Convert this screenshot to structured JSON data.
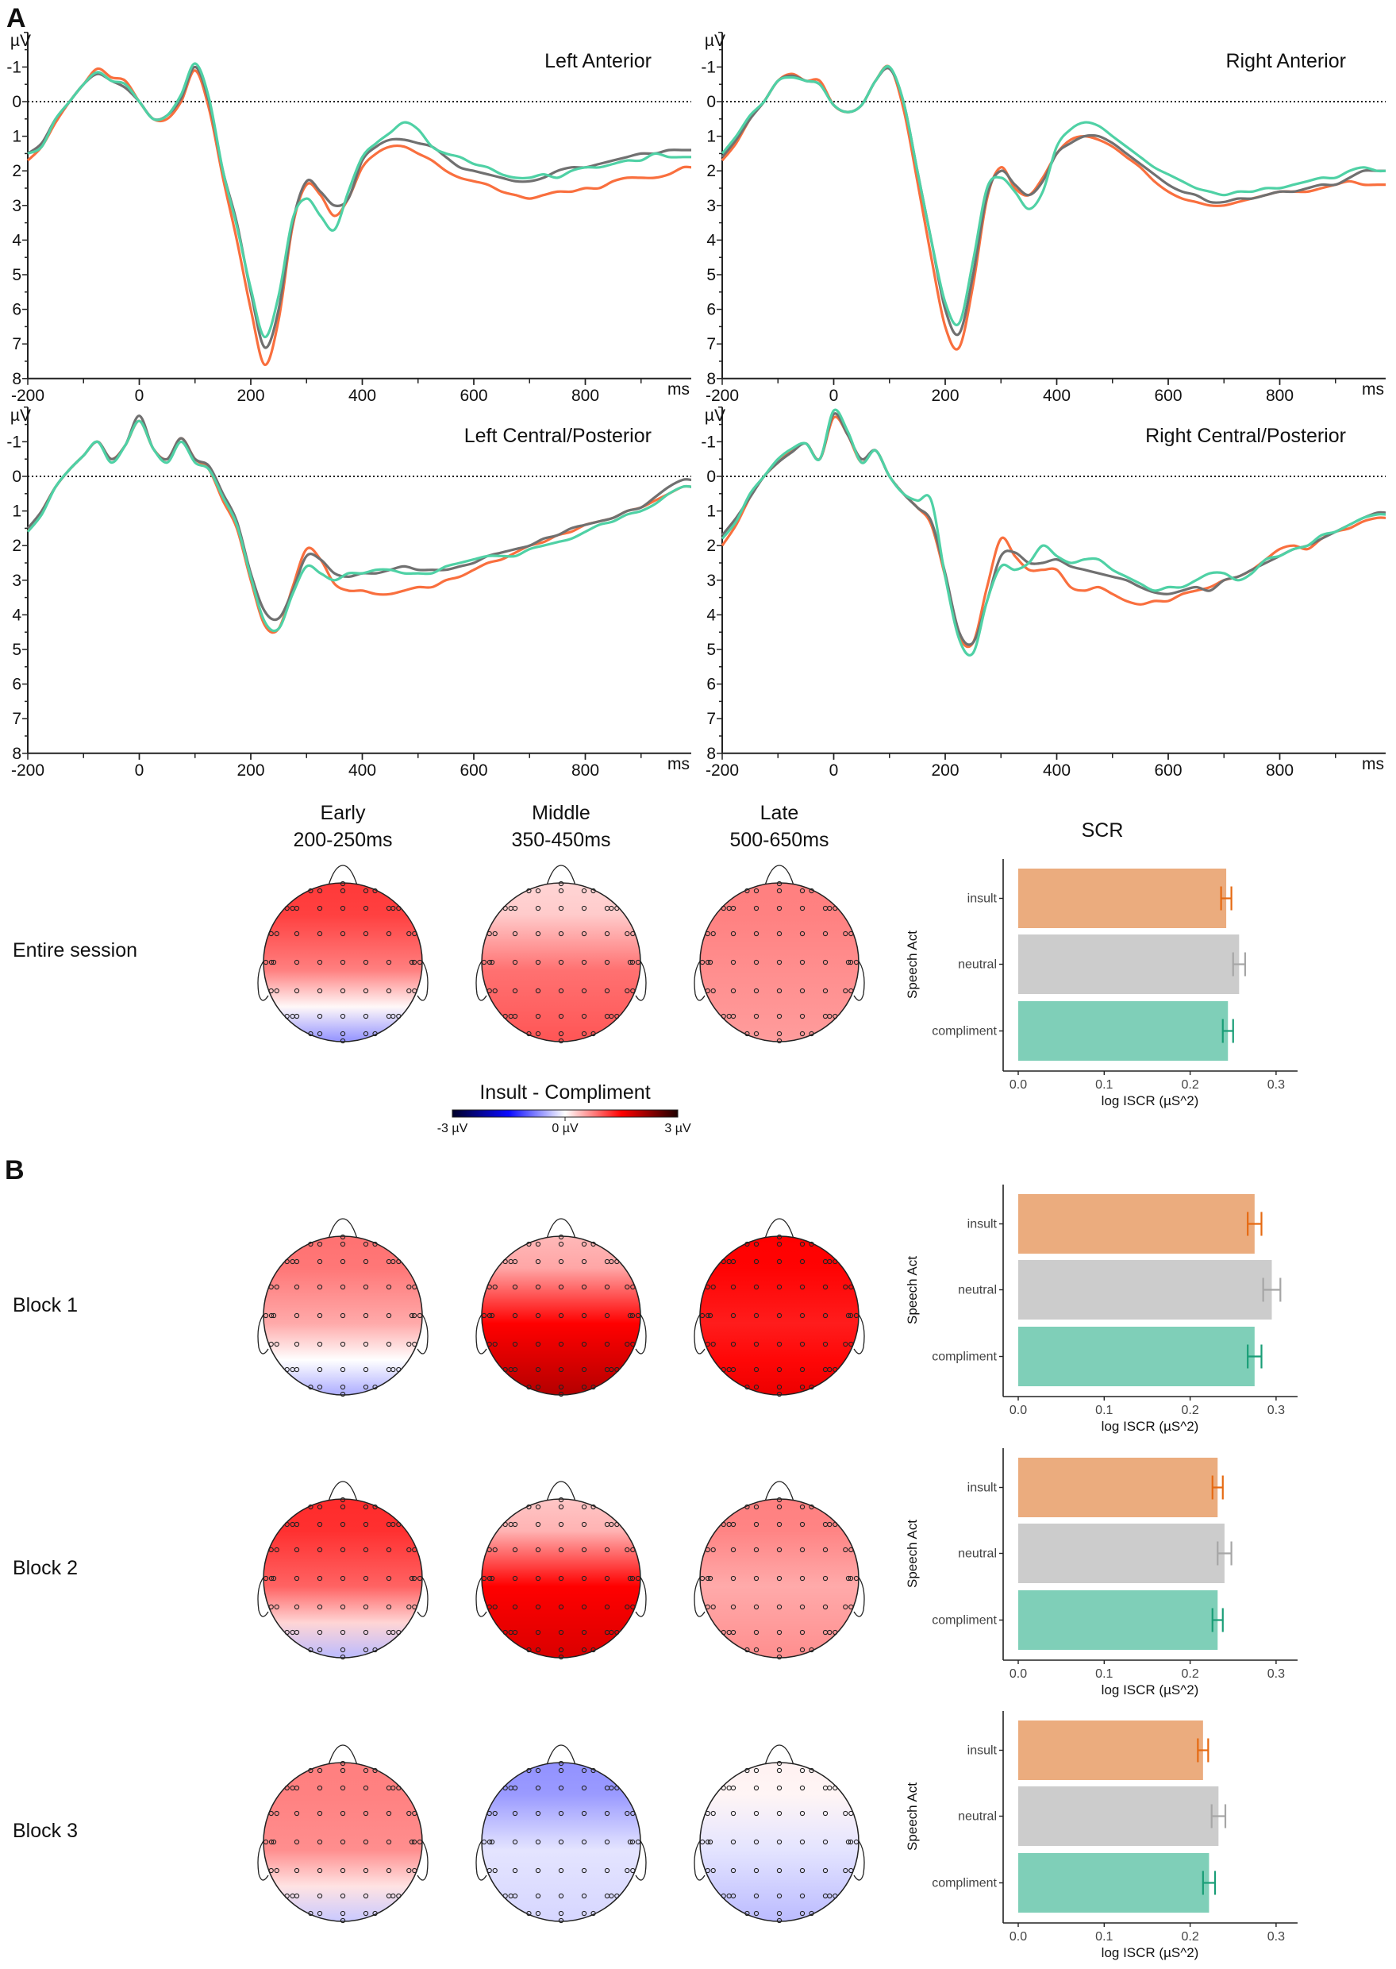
{
  "panel_labels": {
    "a": "A",
    "b": "B"
  },
  "colors": {
    "insult_line": "#f96f3e",
    "neutral_line": "#707070",
    "compliment_line": "#4fd1a5",
    "insult_bar": "#ebac7e",
    "neutral_bar": "#cccccc",
    "compliment_bar": "#7fcfb8",
    "insult_err": "#e66a12",
    "neutral_err": "#a6a6a6",
    "compliment_err": "#1a9e77"
  },
  "chart_data": [
    {
      "type": "line",
      "title": "Left Anterior",
      "xunit": "ms",
      "yunit": "µV",
      "xlim": [
        -200,
        990
      ],
      "ylim": [
        -2,
        8
      ],
      "y_inverted": true,
      "xticks": [
        -200,
        0,
        200,
        400,
        600,
        800
      ],
      "yticks": [
        -1,
        0,
        1,
        2,
        3,
        4,
        5,
        6,
        7,
        8
      ],
      "x": [
        -200,
        -175,
        -150,
        -125,
        -100,
        -75,
        -50,
        -25,
        0,
        25,
        50,
        75,
        100,
        125,
        150,
        175,
        200,
        225,
        250,
        275,
        300,
        325,
        350,
        375,
        400,
        425,
        450,
        475,
        500,
        525,
        550,
        575,
        600,
        625,
        650,
        675,
        700,
        725,
        750,
        775,
        800,
        825,
        850,
        875,
        900,
        925,
        950,
        975
      ],
      "series": [
        {
          "cond": "insult",
          "values": [
            1.7,
            1.3,
            0.6,
            0,
            -0.5,
            -0.95,
            -0.7,
            -0.6,
            0,
            0.5,
            0.5,
            0,
            -0.9,
            0.2,
            2.2,
            4,
            6,
            7.6,
            6.3,
            3.6,
            2.4,
            2.7,
            3.3,
            2.8,
            1.9,
            1.5,
            1.3,
            1.3,
            1.5,
            1.7,
            2.0,
            2.2,
            2.3,
            2.4,
            2.6,
            2.7,
            2.8,
            2.7,
            2.6,
            2.6,
            2.5,
            2.5,
            2.3,
            2.2,
            2.2,
            2.2,
            2.1,
            1.9
          ]
        },
        {
          "cond": "neutral",
          "values": [
            1.5,
            1.2,
            0.5,
            0,
            -0.5,
            -0.8,
            -0.6,
            -0.4,
            0,
            0.5,
            0.4,
            -0.1,
            -1.0,
            0,
            2,
            3.5,
            5.5,
            7.1,
            6,
            3.5,
            2.3,
            2.6,
            3.0,
            2.8,
            1.7,
            1.3,
            1.1,
            1.1,
            1.2,
            1.3,
            1.6,
            1.9,
            2.0,
            2.1,
            2.2,
            2.3,
            2.3,
            2.2,
            2.0,
            1.9,
            1.9,
            1.8,
            1.7,
            1.6,
            1.5,
            1.5,
            1.4,
            1.4
          ]
        },
        {
          "cond": "compliment",
          "values": [
            1.5,
            1.3,
            0.5,
            0,
            -0.5,
            -0.85,
            -0.6,
            -0.5,
            0,
            0.5,
            0.4,
            -0.2,
            -1.1,
            -0.1,
            2,
            3.6,
            5.4,
            6.8,
            5.6,
            3.4,
            2.8,
            3.3,
            3.7,
            2.6,
            1.6,
            1.2,
            0.9,
            0.6,
            0.8,
            1.3,
            1.5,
            1.6,
            1.8,
            1.9,
            2.1,
            2.2,
            2.2,
            2.1,
            2.2,
            2.0,
            1.9,
            1.9,
            1.8,
            1.7,
            1.7,
            1.5,
            1.6,
            1.6
          ]
        }
      ]
    },
    {
      "type": "line",
      "title": "Right Anterior",
      "xunit": "ms",
      "yunit": "µV",
      "xlim": [
        -200,
        990
      ],
      "ylim": [
        -2,
        8
      ],
      "y_inverted": true,
      "xticks": [
        -200,
        0,
        200,
        400,
        600,
        800
      ],
      "yticks": [
        -1,
        0,
        1,
        2,
        3,
        4,
        5,
        6,
        7,
        8
      ],
      "x": [
        -200,
        -175,
        -150,
        -125,
        -100,
        -75,
        -50,
        -25,
        0,
        25,
        50,
        75,
        100,
        125,
        150,
        175,
        200,
        225,
        250,
        275,
        300,
        325,
        350,
        375,
        400,
        425,
        450,
        475,
        500,
        525,
        550,
        575,
        600,
        625,
        650,
        675,
        700,
        725,
        750,
        775,
        800,
        825,
        850,
        875,
        900,
        925,
        950,
        975
      ],
      "series": [
        {
          "cond": "insult",
          "values": [
            1.7,
            1.2,
            0.5,
            0,
            -0.6,
            -0.8,
            -0.6,
            -0.6,
            0.1,
            0.3,
            0.1,
            -0.6,
            -1.0,
            0.2,
            2.3,
            4.5,
            6.5,
            7.1,
            5.3,
            2.8,
            1.9,
            2.5,
            2.7,
            2.2,
            1.5,
            1.1,
            1.0,
            1.1,
            1.3,
            1.6,
            1.9,
            2.3,
            2.6,
            2.8,
            2.9,
            3.0,
            3.0,
            2.9,
            2.8,
            2.7,
            2.6,
            2.6,
            2.6,
            2.5,
            2.4,
            2.3,
            2.4,
            2.4
          ]
        },
        {
          "cond": "neutral",
          "values": [
            1.6,
            1.1,
            0.5,
            0,
            -0.6,
            -0.75,
            -0.6,
            -0.5,
            0.1,
            0.3,
            0.1,
            -0.6,
            -0.95,
            0,
            2,
            4,
            6,
            6.7,
            5,
            2.7,
            2.0,
            2.4,
            2.7,
            2.3,
            1.5,
            1.2,
            1.0,
            1.0,
            1.2,
            1.5,
            1.8,
            2.1,
            2.4,
            2.6,
            2.7,
            2.9,
            2.9,
            2.8,
            2.8,
            2.7,
            2.6,
            2.6,
            2.5,
            2.4,
            2.4,
            2.2,
            2.0,
            2.0
          ]
        },
        {
          "cond": "compliment",
          "values": [
            1.5,
            1.0,
            0.4,
            0,
            -0.6,
            -0.7,
            -0.6,
            -0.5,
            0.1,
            0.3,
            0.1,
            -0.6,
            -1.0,
            0,
            2,
            4,
            5.8,
            6.4,
            4.6,
            2.5,
            2.2,
            2.6,
            3.1,
            2.6,
            1.3,
            0.8,
            0.6,
            0.7,
            1.0,
            1.3,
            1.6,
            1.9,
            2.1,
            2.3,
            2.5,
            2.6,
            2.7,
            2.6,
            2.6,
            2.5,
            2.5,
            2.4,
            2.3,
            2.2,
            2.2,
            2.0,
            1.9,
            2.0
          ]
        }
      ]
    },
    {
      "type": "line",
      "title": "Left Central/Posterior",
      "xunit": "ms",
      "yunit": "µV",
      "xlim": [
        -200,
        990
      ],
      "ylim": [
        -2,
        8
      ],
      "y_inverted": true,
      "xticks": [
        -200,
        0,
        200,
        400,
        600,
        800
      ],
      "yticks": [
        -1,
        0,
        1,
        2,
        3,
        4,
        5,
        6,
        7,
        8
      ],
      "x": [
        -200,
        -175,
        -150,
        -125,
        -100,
        -75,
        -50,
        -25,
        0,
        25,
        50,
        75,
        100,
        125,
        150,
        175,
        200,
        225,
        250,
        275,
        300,
        325,
        350,
        375,
        400,
        425,
        450,
        475,
        500,
        525,
        550,
        575,
        600,
        625,
        650,
        675,
        700,
        725,
        750,
        775,
        800,
        825,
        850,
        875,
        900,
        925,
        950,
        975
      ],
      "series": [
        {
          "cond": "insult",
          "values": [
            1.6,
            1.0,
            0.3,
            -0.2,
            -0.6,
            -1.0,
            -0.5,
            -0.9,
            -1.6,
            -0.8,
            -0.5,
            -1.1,
            -0.5,
            -0.2,
            0.7,
            1.5,
            3.0,
            4.3,
            4.4,
            3.2,
            2.1,
            2.4,
            3.1,
            3.3,
            3.3,
            3.4,
            3.4,
            3.3,
            3.2,
            3.2,
            3.0,
            2.9,
            2.7,
            2.5,
            2.4,
            2.2,
            2.0,
            1.9,
            1.7,
            1.6,
            1.4,
            1.3,
            1.2,
            1.0,
            0.9,
            0.7,
            0.5,
            0.3
          ]
        },
        {
          "cond": "neutral",
          "values": [
            1.5,
            1.0,
            0.3,
            -0.2,
            -0.6,
            -1.0,
            -0.5,
            -0.9,
            -1.75,
            -0.8,
            -0.5,
            -1.1,
            -0.5,
            -0.3,
            0.5,
            1.3,
            2.8,
            3.9,
            4.1,
            3.3,
            2.3,
            2.4,
            2.8,
            2.9,
            2.8,
            2.8,
            2.7,
            2.6,
            2.7,
            2.7,
            2.7,
            2.6,
            2.5,
            2.3,
            2.2,
            2.1,
            2.0,
            1.8,
            1.7,
            1.5,
            1.4,
            1.3,
            1.2,
            1.0,
            0.9,
            0.6,
            0.3,
            0.1
          ]
        },
        {
          "cond": "compliment",
          "values": [
            1.6,
            1.1,
            0.3,
            -0.2,
            -0.6,
            -1.0,
            -0.4,
            -0.9,
            -1.6,
            -0.8,
            -0.4,
            -1.0,
            -0.4,
            -0.2,
            0.6,
            1.4,
            2.9,
            4.2,
            4.4,
            3.4,
            2.6,
            2.8,
            3.0,
            2.8,
            2.8,
            2.7,
            2.7,
            2.8,
            2.8,
            2.8,
            2.6,
            2.5,
            2.4,
            2.3,
            2.3,
            2.3,
            2.1,
            2.0,
            1.9,
            1.8,
            1.6,
            1.4,
            1.3,
            1.1,
            1.0,
            0.8,
            0.5,
            0.3
          ]
        }
      ]
    },
    {
      "type": "line",
      "title": "Right Central/Posterior",
      "xunit": "ms",
      "yunit": "µV",
      "xlim": [
        -200,
        990
      ],
      "ylim": [
        -2,
        8
      ],
      "y_inverted": true,
      "xticks": [
        -200,
        0,
        200,
        400,
        600,
        800
      ],
      "yticks": [
        -1,
        0,
        1,
        2,
        3,
        4,
        5,
        6,
        7,
        8
      ],
      "x": [
        -200,
        -175,
        -150,
        -125,
        -100,
        -75,
        -50,
        -25,
        0,
        25,
        50,
        75,
        100,
        125,
        150,
        175,
        200,
        225,
        250,
        275,
        300,
        325,
        350,
        375,
        400,
        425,
        450,
        475,
        500,
        525,
        550,
        575,
        600,
        625,
        650,
        675,
        700,
        725,
        750,
        775,
        800,
        825,
        850,
        875,
        900,
        925,
        950,
        975
      ],
      "series": [
        {
          "cond": "insult",
          "values": [
            2.0,
            1.4,
            0.6,
            0,
            -0.4,
            -0.75,
            -0.95,
            -0.5,
            -1.7,
            -1.2,
            -0.4,
            -0.75,
            0,
            0.5,
            0.9,
            1.4,
            2.9,
            4.6,
            4.8,
            3.2,
            1.8,
            2.3,
            2.7,
            2.7,
            2.7,
            3.2,
            3.3,
            3.2,
            3.4,
            3.6,
            3.7,
            3.6,
            3.6,
            3.4,
            3.3,
            3.2,
            3.0,
            2.9,
            2.7,
            2.4,
            2.1,
            2.0,
            2.1,
            1.8,
            1.6,
            1.5,
            1.3,
            1.2
          ]
        },
        {
          "cond": "neutral",
          "values": [
            1.7,
            1.2,
            0.6,
            0,
            -0.4,
            -0.7,
            -0.95,
            -0.5,
            -1.8,
            -1.2,
            -0.5,
            -0.75,
            0,
            0.5,
            0.9,
            1.3,
            2.8,
            4.5,
            4.8,
            3.6,
            2.3,
            2.2,
            2.5,
            2.5,
            2.4,
            2.6,
            2.7,
            2.8,
            2.9,
            3.0,
            3.2,
            3.35,
            3.4,
            3.3,
            3.2,
            3.3,
            3.0,
            2.9,
            2.7,
            2.5,
            2.3,
            2.1,
            2.0,
            1.8,
            1.6,
            1.4,
            1.2,
            1.05
          ]
        },
        {
          "cond": "compliment",
          "values": [
            1.8,
            1.3,
            0.5,
            0,
            -0.5,
            -0.8,
            -0.95,
            -0.5,
            -1.9,
            -1.3,
            -0.4,
            -0.75,
            0,
            0.5,
            0.7,
            0.7,
            2.9,
            4.7,
            5.1,
            3.6,
            2.6,
            2.7,
            2.5,
            2.0,
            2.3,
            2.5,
            2.4,
            2.4,
            2.7,
            2.9,
            3.1,
            3.3,
            3.2,
            3.2,
            3.0,
            2.8,
            2.8,
            3.0,
            2.8,
            2.4,
            2.3,
            2.1,
            2.0,
            1.7,
            1.6,
            1.4,
            1.2,
            1.1
          ]
        }
      ]
    },
    {
      "type": "bar",
      "orientation": "horizontal",
      "title": "SCR",
      "row": "Entire session",
      "categories": [
        "insult",
        "neutral",
        "compliment"
      ],
      "values": [
        0.242,
        0.257,
        0.244
      ],
      "errors": [
        0.006,
        0.007,
        0.006
      ],
      "xlabel": "log ISCR (µS^2)",
      "ylabel": "Speech Act",
      "xlim": [
        0,
        0.325
      ],
      "xticks": [
        "0.0",
        "0.1",
        "0.2",
        "0.3"
      ]
    },
    {
      "type": "bar",
      "orientation": "horizontal",
      "title": "",
      "row": "Block 1",
      "categories": [
        "insult",
        "neutral",
        "compliment"
      ],
      "values": [
        0.275,
        0.295,
        0.275
      ],
      "errors": [
        0.008,
        0.01,
        0.008
      ],
      "xlabel": "log ISCR (µS^2)",
      "ylabel": "Speech Act",
      "xlim": [
        0,
        0.325
      ],
      "xticks": [
        "0.0",
        "0.1",
        "0.2",
        "0.3"
      ]
    },
    {
      "type": "bar",
      "orientation": "horizontal",
      "title": "",
      "row": "Block 2",
      "categories": [
        "insult",
        "neutral",
        "compliment"
      ],
      "values": [
        0.232,
        0.24,
        0.232
      ],
      "errors": [
        0.006,
        0.008,
        0.006
      ],
      "xlabel": "log ISCR (µS^2)",
      "ylabel": "Speech Act",
      "xlim": [
        0,
        0.325
      ],
      "xticks": [
        "0.0",
        "0.1",
        "0.2",
        "0.3"
      ]
    },
    {
      "type": "bar",
      "orientation": "horizontal",
      "title": "",
      "row": "Block 3",
      "categories": [
        "insult",
        "neutral",
        "compliment"
      ],
      "values": [
        0.215,
        0.233,
        0.222
      ],
      "errors": [
        0.006,
        0.008,
        0.007
      ],
      "xlabel": "log ISCR (µS^2)",
      "ylabel": "Speech Act",
      "xlim": [
        0,
        0.325
      ],
      "xticks": [
        "0.0",
        "0.1",
        "0.2",
        "0.3"
      ]
    }
  ],
  "topomaps": {
    "columns": [
      {
        "name": "Early",
        "window": "200-250ms"
      },
      {
        "name": "Middle",
        "window": "350-450ms"
      },
      {
        "name": "Late",
        "window": "500-650ms"
      }
    ],
    "rows": [
      {
        "label": "Entire session",
        "maps": [
          {
            "front": 1.4,
            "center": 0.9,
            "back": -0.8
          },
          {
            "front": 0.3,
            "center": 1.0,
            "back": 1.2
          },
          {
            "front": 0.9,
            "center": 0.8,
            "back": 0.7
          }
        ]
      },
      {
        "label": "Block 1",
        "maps": [
          {
            "front": 1.0,
            "center": 0.6,
            "back": -0.6
          },
          {
            "front": 0.5,
            "center": 1.8,
            "back": 2.2
          },
          {
            "front": 1.8,
            "center": 1.6,
            "back": 1.9
          }
        ]
      },
      {
        "label": "Block 2",
        "maps": [
          {
            "front": 1.5,
            "center": 1.1,
            "back": -0.5
          },
          {
            "front": 0.4,
            "center": 1.8,
            "back": 2.0
          },
          {
            "front": 0.9,
            "center": 0.6,
            "back": 0.8
          }
        ]
      },
      {
        "label": "Block 3",
        "maps": [
          {
            "front": 0.9,
            "center": 0.8,
            "back": -0.4
          },
          {
            "front": -0.8,
            "center": -0.2,
            "back": -0.3
          },
          {
            "front": 0.1,
            "center": -0.2,
            "back": -0.5
          }
        ]
      }
    ],
    "colorbar": {
      "title": "Insult - Compliment",
      "min_label": "-3 µV",
      "mid_label": "0 µV",
      "max_label": "3 µV",
      "min": -3,
      "max": 3
    }
  }
}
